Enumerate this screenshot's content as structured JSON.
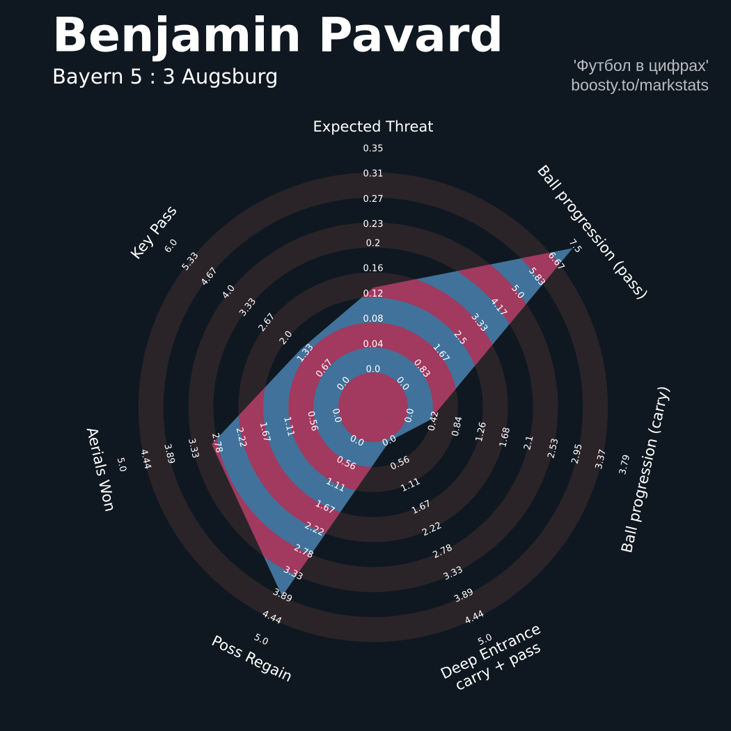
{
  "chart_data": {
    "type": "radar",
    "title": "Benjamin Pavard",
    "subtitle": "Bayern 5 : 3 Augsburg",
    "credits": [
      "'Футбол в цифрах'",
      "boosty.to/markstats"
    ],
    "categories": [
      "Expected Threat",
      "Ball progression (pass)",
      "Ball progression (carry)",
      "Deep Entrance\ncarry + pass",
      "Poss Regain",
      "Aerials Won",
      "Key Pass"
    ],
    "series": [
      {
        "name": "Benjamin Pavard",
        "color": "#41729b",
        "ring_color": "#a2395e",
        "values": [
          0.13,
          7.4,
          0.35,
          0,
          3.9,
          2.9,
          1.5
        ]
      }
    ],
    "axes": [
      {
        "range": [
          0,
          0.35
        ],
        "ticks": [
          {
            "value": 0,
            "label": "0.0"
          },
          0.04,
          0.08,
          0.12,
          0.16,
          0.2,
          0.23,
          0.27,
          0.31,
          0.35
        ]
      },
      {
        "range": [
          0,
          7.5
        ],
        "ticks": [
          {
            "value": 0,
            "label": "0.0"
          },
          0.83,
          1.67,
          2.5,
          3.33,
          4.17,
          {
            "value": 5,
            "label": "5.0"
          },
          5.83,
          6.67,
          7.5
        ]
      },
      {
        "range": [
          0,
          3.79
        ],
        "ticks": [
          {
            "value": 0,
            "label": "0.0"
          },
          0.42,
          0.84,
          1.26,
          1.68,
          2.1,
          2.53,
          2.95,
          3.37,
          3.79
        ]
      },
      {
        "range": [
          0,
          5
        ],
        "ticks": [
          {
            "value": 0,
            "label": "0.0"
          },
          0.56,
          1.11,
          1.67,
          2.22,
          2.78,
          3.33,
          3.89,
          4.44,
          {
            "value": 5,
            "label": "5.0"
          }
        ]
      },
      {
        "range": [
          0,
          5
        ],
        "ticks": [
          {
            "value": 0,
            "label": "0.0"
          },
          0.56,
          1.11,
          1.67,
          2.22,
          2.78,
          3.33,
          3.89,
          4.44,
          {
            "value": 5,
            "label": "5.0"
          }
        ]
      },
      {
        "range": [
          0,
          5
        ],
        "ticks": [
          {
            "value": 0,
            "label": "0.0"
          },
          0.56,
          1.11,
          1.67,
          2.22,
          2.78,
          3.33,
          3.89,
          4.44,
          {
            "value": 5,
            "label": "5.0"
          }
        ]
      },
      {
        "range": [
          0,
          6
        ],
        "ticks": [
          {
            "value": 0,
            "label": "0.0"
          },
          0.67,
          1.33,
          {
            "value": 2,
            "label": "2.0"
          },
          2.67,
          3.33,
          {
            "value": 4,
            "label": "4.0"
          },
          4.67,
          5.33,
          {
            "value": 6,
            "label": "6.0"
          }
        ]
      }
    ],
    "ring_background": "#2a2429"
  }
}
